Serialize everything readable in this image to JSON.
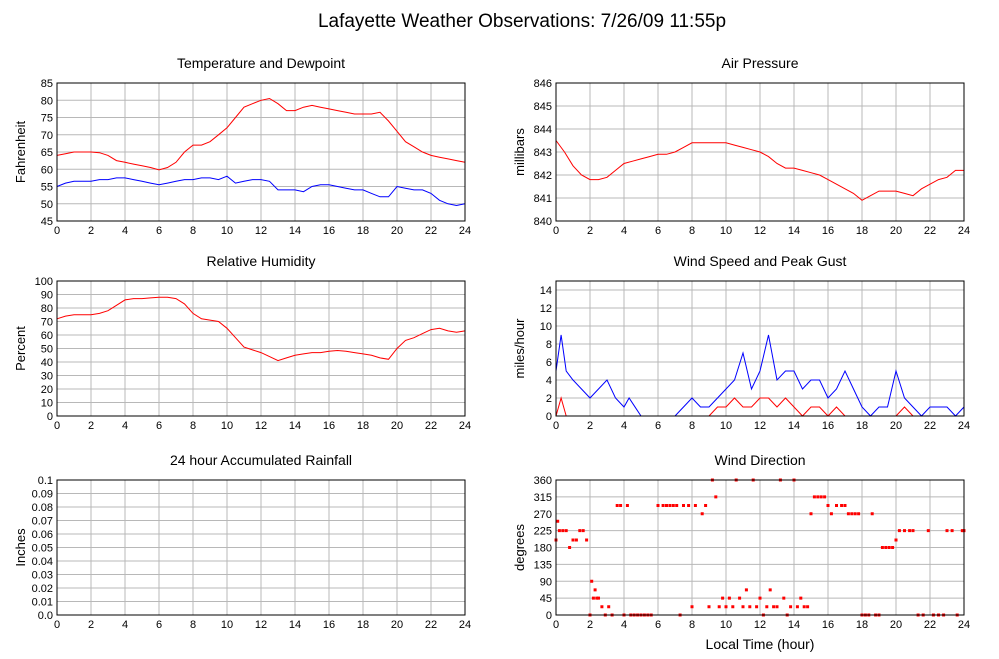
{
  "page_title": "Lafayette Weather Observations: 7/26/09 11:55p",
  "colors": {
    "red": "#ff0000",
    "blue": "#0000ff",
    "grid": "#b8b8b8"
  },
  "chart_data": [
    {
      "id": "temp",
      "type": "line",
      "title": "Temperature and Dewpoint",
      "xlabel": "",
      "ylabel": "Fahrenheit",
      "xlim": [
        0,
        24
      ],
      "ylim": [
        45,
        85
      ],
      "xticks": [
        0,
        2,
        4,
        6,
        8,
        10,
        12,
        14,
        16,
        18,
        20,
        22,
        24
      ],
      "yticks": [
        45,
        50,
        55,
        60,
        65,
        70,
        75,
        80,
        85
      ],
      "grid": true,
      "series": [
        {
          "color": "#ff0000",
          "x": [
            0,
            0.5,
            1,
            1.5,
            2,
            2.5,
            3,
            3.5,
            4,
            4.5,
            5,
            5.5,
            6,
            6.5,
            7,
            7.5,
            8,
            8.5,
            9,
            9.5,
            10,
            10.5,
            11,
            11.5,
            12,
            12.5,
            13,
            13.5,
            14,
            14.5,
            15,
            15.5,
            16,
            16.5,
            17,
            17.5,
            18,
            18.5,
            19,
            19.5,
            20,
            20.5,
            21,
            21.5,
            22,
            22.5,
            23,
            23.5,
            24
          ],
          "y": [
            64,
            64.5,
            65,
            65,
            65,
            64.8,
            64,
            62.5,
            62,
            61.5,
            61,
            60.5,
            59.8,
            60.5,
            62,
            65,
            67,
            67,
            68,
            70,
            72,
            75,
            78,
            79,
            80,
            80.5,
            79,
            77,
            77,
            78,
            78.5,
            78,
            77.5,
            77,
            76.5,
            76,
            76,
            76,
            76.5,
            74,
            71,
            68,
            66.5,
            65,
            64,
            63.5,
            63,
            62.5,
            62
          ]
        },
        {
          "color": "#0000ff",
          "x": [
            0,
            0.5,
            1,
            1.5,
            2,
            2.5,
            3,
            3.5,
            4,
            4.5,
            5,
            5.5,
            6,
            6.5,
            7,
            7.5,
            8,
            8.5,
            9,
            9.5,
            10,
            10.5,
            11,
            11.5,
            12,
            12.5,
            13,
            13.5,
            14,
            14.5,
            15,
            15.5,
            16,
            16.5,
            17,
            17.5,
            18,
            18.5,
            19,
            19.5,
            20,
            20.5,
            21,
            21.5,
            22,
            22.5,
            23,
            23.5,
            24
          ],
          "y": [
            55,
            56,
            56.5,
            56.5,
            56.5,
            57,
            57,
            57.5,
            57.5,
            57,
            56.5,
            56,
            55.5,
            56,
            56.5,
            57,
            57,
            57.5,
            57.5,
            57,
            58,
            56,
            56.5,
            57,
            57,
            56.5,
            54,
            54,
            54,
            53.5,
            55,
            55.5,
            55.5,
            55,
            54.5,
            54,
            54,
            53,
            52,
            52,
            55,
            54.5,
            54,
            54,
            53,
            51,
            50,
            49.5,
            50
          ]
        }
      ]
    },
    {
      "id": "pressure",
      "type": "line",
      "title": "Air Pressure",
      "xlabel": "",
      "ylabel": "millibars",
      "xlim": [
        0,
        24
      ],
      "ylim": [
        840,
        846
      ],
      "xticks": [
        0,
        2,
        4,
        6,
        8,
        10,
        12,
        14,
        16,
        18,
        20,
        22,
        24
      ],
      "yticks": [
        840,
        841,
        842,
        843,
        844,
        845,
        846
      ],
      "grid": true,
      "series": [
        {
          "color": "#ff0000",
          "x": [
            0,
            0.5,
            1,
            1.5,
            2,
            2.5,
            3,
            3.5,
            4,
            4.5,
            5,
            5.5,
            6,
            6.5,
            7,
            7.5,
            8,
            8.5,
            9,
            9.5,
            10,
            10.5,
            11,
            11.5,
            12,
            12.5,
            13,
            13.5,
            14,
            14.5,
            15,
            15.5,
            16,
            16.5,
            17,
            17.5,
            18,
            18.5,
            19,
            19.5,
            20,
            20.5,
            21,
            21.5,
            22,
            22.5,
            23,
            23.5,
            24
          ],
          "y": [
            843.5,
            843,
            842.4,
            842,
            841.8,
            841.8,
            841.9,
            842.2,
            842.5,
            842.6,
            842.7,
            842.8,
            842.9,
            842.9,
            843,
            843.2,
            843.4,
            843.4,
            843.4,
            843.4,
            843.4,
            843.3,
            843.2,
            843.1,
            843,
            842.8,
            842.5,
            842.3,
            842.3,
            842.2,
            842.1,
            842,
            841.8,
            841.6,
            841.4,
            841.2,
            840.9,
            841.1,
            841.3,
            841.3,
            841.3,
            841.2,
            841.1,
            841.4,
            841.6,
            841.8,
            841.9,
            842.2,
            842.2
          ]
        }
      ]
    },
    {
      "id": "humidity",
      "type": "line",
      "title": "Relative Humidity",
      "xlabel": "",
      "ylabel": "Percent",
      "xlim": [
        0,
        24
      ],
      "ylim": [
        0,
        100
      ],
      "xticks": [
        0,
        2,
        4,
        6,
        8,
        10,
        12,
        14,
        16,
        18,
        20,
        22,
        24
      ],
      "yticks": [
        0,
        10,
        20,
        30,
        40,
        50,
        60,
        70,
        80,
        90,
        100
      ],
      "grid": true,
      "series": [
        {
          "color": "#ff0000",
          "x": [
            0,
            0.5,
            1,
            1.5,
            2,
            2.5,
            3,
            3.5,
            4,
            4.5,
            5,
            5.5,
            6,
            6.5,
            7,
            7.5,
            8,
            8.5,
            9,
            9.5,
            10,
            10.5,
            11,
            11.5,
            12,
            12.5,
            13,
            13.5,
            14,
            14.5,
            15,
            15.5,
            16,
            16.5,
            17,
            17.5,
            18,
            18.5,
            19,
            19.5,
            20,
            20.5,
            21,
            21.5,
            22,
            22.5,
            23,
            23.5,
            24
          ],
          "y": [
            72,
            74,
            75,
            75,
            75,
            76,
            78,
            82,
            86,
            87,
            87,
            87.5,
            88,
            88,
            87,
            83,
            76,
            72,
            71,
            70,
            65,
            58,
            51,
            49,
            47,
            44,
            41,
            43,
            45,
            46,
            47,
            47,
            48,
            48.5,
            48,
            47,
            46,
            45,
            43,
            42,
            50,
            56,
            58,
            61,
            64,
            65,
            63,
            62,
            63
          ]
        }
      ]
    },
    {
      "id": "wind",
      "type": "line",
      "title": "Wind Speed and Peak Gust",
      "xlabel": "",
      "ylabel": "miles/hour",
      "xlim": [
        0,
        24
      ],
      "ylim": [
        0,
        15
      ],
      "xticks": [
        0,
        2,
        4,
        6,
        8,
        10,
        12,
        14,
        16,
        18,
        20,
        22,
        24
      ],
      "yticks": [
        0,
        2,
        4,
        6,
        8,
        10,
        12,
        14
      ],
      "grid": true,
      "series": [
        {
          "color": "#0000ff",
          "x": [
            0,
            0.3,
            0.6,
            1,
            1.5,
            2,
            2.5,
            3,
            3.5,
            4,
            4.3,
            5,
            5.5,
            6,
            6.5,
            7,
            7.5,
            8,
            8.5,
            9,
            9.5,
            10,
            10.5,
            11,
            11.5,
            12,
            12.5,
            13,
            13.5,
            14,
            14.5,
            15,
            15.5,
            16,
            16.5,
            17,
            17.5,
            18,
            18.5,
            19,
            19.5,
            20,
            20.5,
            21,
            21.5,
            22,
            22.5,
            23,
            23.5,
            24
          ],
          "y": [
            5,
            9,
            5,
            4,
            3,
            2,
            3,
            4,
            2,
            1,
            2,
            0,
            0,
            0,
            0,
            0,
            1,
            2,
            1,
            1,
            2,
            3,
            4,
            7,
            3,
            5,
            9,
            4,
            5,
            5,
            3,
            4,
            4,
            2,
            3,
            5,
            3,
            1,
            0,
            1,
            1,
            5,
            2,
            1,
            0,
            1,
            1,
            1,
            0,
            1
          ]
        },
        {
          "color": "#ff0000",
          "x": [
            0,
            0.3,
            0.6,
            1,
            1.5,
            2,
            3,
            4,
            5,
            6,
            7,
            8,
            9,
            9.5,
            10,
            10.5,
            11,
            11.5,
            12,
            12.5,
            13,
            13.5,
            14,
            14.5,
            15,
            15.5,
            16,
            16.5,
            17,
            17.5,
            18,
            19,
            20,
            20.5,
            21,
            22,
            23,
            24
          ],
          "y": [
            0,
            2,
            0,
            0,
            0,
            0,
            0,
            0,
            0,
            0,
            0,
            0,
            0,
            1,
            1,
            2,
            1,
            1,
            2,
            2,
            1,
            2,
            1,
            0,
            1,
            1,
            0,
            1,
            0,
            0,
            0,
            0,
            0,
            1,
            0,
            0,
            0,
            0
          ]
        }
      ]
    },
    {
      "id": "rain",
      "type": "line",
      "title": "24 hour Accumulated Rainfall",
      "xlabel": "",
      "ylabel": "Inches",
      "xlim": [
        0,
        24
      ],
      "ylim": [
        0,
        0.1
      ],
      "xticks": [
        0,
        2,
        4,
        6,
        8,
        10,
        12,
        14,
        16,
        18,
        20,
        22,
        24
      ],
      "yticks": [
        0,
        0.01,
        0.02,
        0.03,
        0.04,
        0.05,
        0.06,
        0.07,
        0.08,
        0.09,
        0.1
      ],
      "ytick_labels": [
        "0.0",
        "0.01",
        "0.02",
        "0.03",
        "0.04",
        "0.05",
        "0.06",
        "0.07",
        "0.08",
        "0.09",
        "0.1"
      ],
      "grid": true,
      "series": [
        {
          "color": "#ff0000",
          "x": [
            0,
            24
          ],
          "y": [
            0,
            0
          ]
        }
      ]
    },
    {
      "id": "direction",
      "type": "scatter",
      "title": "Wind Direction",
      "xlabel": "Local Time (hour)",
      "ylabel": "degrees",
      "xlim": [
        0,
        24
      ],
      "ylim": [
        0,
        360
      ],
      "xticks": [
        0,
        2,
        4,
        6,
        8,
        10,
        12,
        14,
        16,
        18,
        20,
        22,
        24
      ],
      "yticks": [
        0,
        45,
        90,
        135,
        180,
        225,
        270,
        315,
        360
      ],
      "grid": true,
      "series": [
        {
          "color": "#ff0000",
          "x": [
            0,
            0.1,
            0.2,
            0.4,
            0.6,
            0.8,
            1.0,
            1.2,
            1.4,
            1.6,
            1.8,
            2.0,
            2.1,
            2.2,
            2.3,
            2.4,
            2.5,
            2.7,
            2.9,
            3.1,
            3.3,
            3.6,
            3.8,
            4.0,
            4.2,
            4.4,
            4.6,
            4.8,
            5.0,
            5.2,
            5.4,
            5.6,
            6.0,
            6.3,
            6.5,
            6.7,
            6.9,
            7.1,
            7.3,
            7.5,
            7.8,
            8.0,
            8.2,
            8.6,
            8.8,
            9.0,
            9.2,
            9.4,
            9.6,
            9.8,
            10.0,
            10.2,
            10.4,
            10.6,
            10.8,
            11.0,
            11.2,
            11.4,
            11.6,
            11.8,
            12.0,
            12.2,
            12.4,
            12.6,
            12.8,
            13.0,
            13.2,
            13.4,
            13.6,
            13.8,
            14.0,
            14.2,
            14.4,
            14.6,
            14.8,
            15.0,
            15.2,
            15.4,
            15.6,
            15.8,
            16.0,
            16.2,
            16.5,
            16.8,
            17.0,
            17.2,
            17.4,
            17.6,
            17.8,
            18.0,
            18.2,
            18.4,
            18.6,
            18.8,
            19.0,
            19.2,
            19.4,
            19.6,
            19.8,
            20.0,
            20.2,
            20.5,
            20.8,
            21.0,
            21.3,
            21.6,
            21.9,
            22.2,
            22.5,
            22.8,
            23.0,
            23.3,
            23.6,
            23.9,
            24.0
          ],
          "y": [
            200,
            250,
            225,
            225,
            225,
            180,
            200,
            200,
            225,
            225,
            200,
            0,
            90,
            45,
            67,
            45,
            45,
            22,
            0,
            22,
            0,
            292,
            292,
            0,
            292,
            0,
            0,
            0,
            0,
            0,
            0,
            0,
            292,
            292,
            292,
            292,
            292,
            292,
            0,
            292,
            292,
            22,
            292,
            270,
            292,
            22,
            360,
            315,
            22,
            45,
            22,
            45,
            22,
            360,
            45,
            22,
            67,
            22,
            360,
            22,
            45,
            0,
            22,
            67,
            22,
            22,
            360,
            45,
            0,
            22,
            360,
            22,
            45,
            22,
            22,
            270,
            315,
            315,
            315,
            315,
            292,
            270,
            292,
            292,
            292,
            270,
            270,
            270,
            270,
            0,
            0,
            0,
            270,
            0,
            0,
            180,
            180,
            180,
            180,
            200,
            225,
            225,
            225,
            225,
            0,
            0,
            225,
            0,
            0,
            0,
            225,
            225,
            0,
            225,
            225
          ]
        }
      ]
    }
  ]
}
